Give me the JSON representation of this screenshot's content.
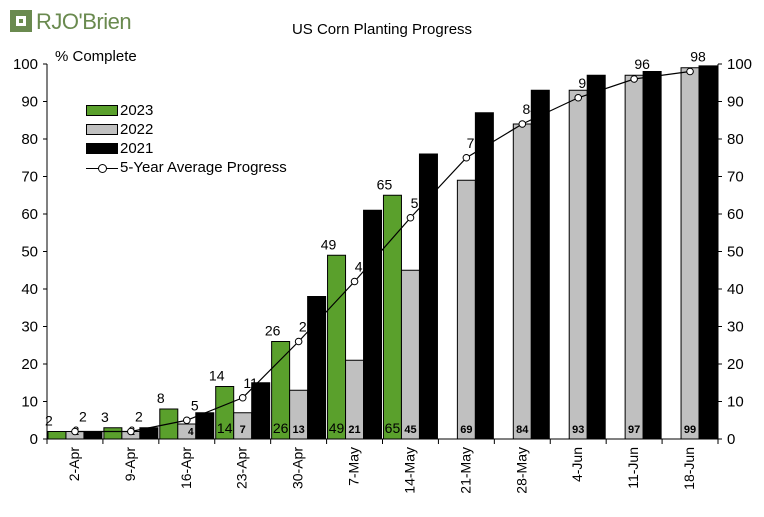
{
  "brand": {
    "name": "RJO'Brien"
  },
  "colors": {
    "y2023": "#5aa02c",
    "y2022": "#c0c0c0",
    "y2021": "#000000",
    "avg": "#000000"
  },
  "chart_data": {
    "type": "bar",
    "title": "US Corn Planting Progress",
    "ylabel": "% Complete",
    "xlabel": "",
    "ylim": [
      0,
      100
    ],
    "yticks": [
      0,
      10,
      20,
      30,
      40,
      50,
      60,
      70,
      80,
      90,
      100
    ],
    "categories": [
      "2-Apr",
      "9-Apr",
      "16-Apr",
      "23-Apr",
      "30-Apr",
      "7-May",
      "14-May",
      "21-May",
      "28-May",
      "4-Jun",
      "11-Jun",
      "18-Jun"
    ],
    "series": [
      {
        "name": "2023",
        "values": [
          2,
          3,
          8,
          14,
          26,
          49,
          65,
          null,
          null,
          null,
          null,
          null
        ]
      },
      {
        "name": "2022",
        "values": [
          2,
          2,
          4,
          7,
          13,
          21,
          45,
          69,
          84,
          93,
          97,
          99
        ]
      },
      {
        "name": "2021",
        "values": [
          2,
          3,
          7,
          15,
          38,
          61,
          76,
          87,
          93,
          97,
          98,
          99.5
        ]
      },
      {
        "name": "5-Year Average Progress",
        "type": "line",
        "values": [
          2,
          2,
          5,
          11,
          26,
          42,
          59,
          75,
          84,
          91,
          96,
          98
        ]
      }
    ],
    "legend": "upper-left",
    "grid": false
  }
}
